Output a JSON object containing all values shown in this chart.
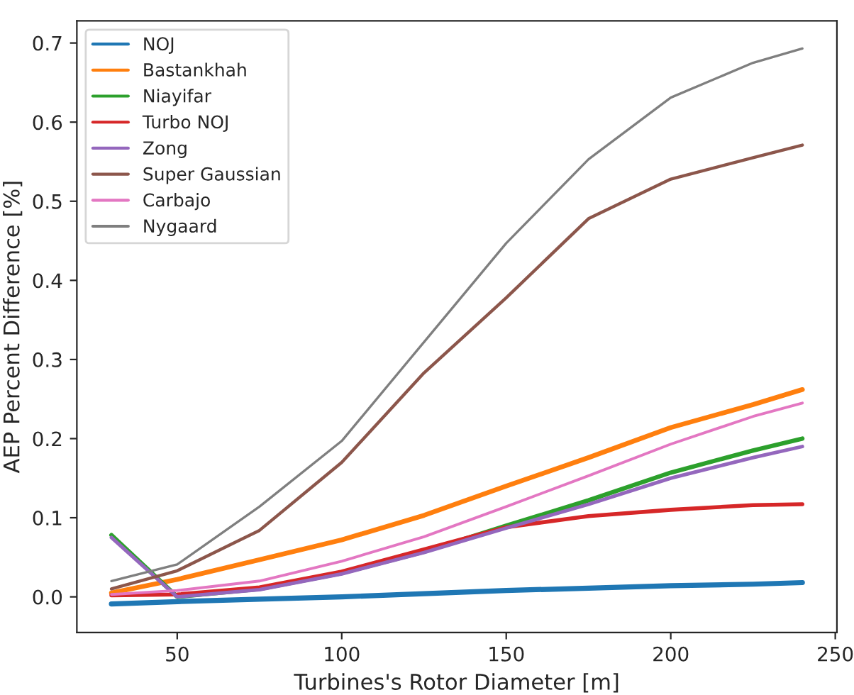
{
  "chart_data": {
    "type": "line",
    "xlabel": "Turbines's Rotor Diameter [m]",
    "ylabel": "AEP Percent Difference [%]",
    "xlim": [
      19.5,
      250.5
    ],
    "xticks": [
      50,
      100,
      150,
      200,
      250
    ],
    "ylim": [
      -0.045,
      0.728
    ],
    "yticks": [
      {
        "value": 0,
        "label": "0.0"
      },
      0.1,
      0.2,
      0.3,
      0.4,
      0.5,
      0.6,
      0.7
    ],
    "grid": false,
    "legend": "top left",
    "marker": "none",
    "line_style": "solid",
    "series": [
      {
        "name": "NOJ",
        "color": "#1f77b4",
        "x": [
          30,
          50,
          75,
          100,
          125,
          150,
          175,
          200,
          225,
          240
        ],
        "values": [
          -0.009,
          -0.006,
          -0.003,
          0.0,
          0.004,
          0.008,
          0.011,
          0.014,
          0.016,
          0.018
        ]
      },
      {
        "name": "Bastankhah",
        "color": "#ff7f0e",
        "x": [
          30,
          50,
          75,
          100,
          125,
          150,
          175,
          200,
          225,
          240
        ],
        "values": [
          0.005,
          0.022,
          0.047,
          0.072,
          0.103,
          0.14,
          0.176,
          0.214,
          0.243,
          0.262
        ]
      },
      {
        "name": "Niayifar",
        "color": "#2ca02c",
        "x": [
          30,
          50,
          75,
          100,
          125,
          150,
          175,
          200,
          225,
          240
        ],
        "values": [
          0.078,
          0.0,
          0.01,
          0.03,
          0.057,
          0.09,
          0.122,
          0.157,
          0.185,
          0.2
        ]
      },
      {
        "name": "Turbo NOJ",
        "color": "#d62728",
        "x": [
          30,
          50,
          75,
          100,
          125,
          150,
          175,
          200,
          225,
          240
        ],
        "values": [
          0.002,
          0.003,
          0.012,
          0.032,
          0.06,
          0.088,
          0.102,
          0.11,
          0.116,
          0.117
        ]
      },
      {
        "name": "Zong",
        "color": "#9467bd",
        "x": [
          30,
          50,
          75,
          100,
          125,
          150,
          175,
          200,
          225,
          240
        ],
        "values": [
          0.075,
          0.0,
          0.009,
          0.029,
          0.056,
          0.087,
          0.117,
          0.15,
          0.176,
          0.19
        ]
      },
      {
        "name": "Super Gaussian",
        "color": "#8c564b",
        "x": [
          30,
          50,
          75,
          100,
          125,
          150,
          175,
          200,
          225,
          240
        ],
        "values": [
          0.01,
          0.033,
          0.084,
          0.17,
          0.283,
          0.378,
          0.478,
          0.528,
          0.555,
          0.571
        ]
      },
      {
        "name": "Carbajo",
        "color": "#e377c2",
        "x": [
          30,
          50,
          75,
          100,
          125,
          150,
          175,
          200,
          225,
          240
        ],
        "values": [
          0.003,
          0.008,
          0.02,
          0.045,
          0.076,
          0.114,
          0.153,
          0.193,
          0.228,
          0.245
        ]
      },
      {
        "name": "Nygaard",
        "color": "#7f7f7f",
        "x": [
          30,
          50,
          75,
          100,
          125,
          150,
          175,
          200,
          225,
          240
        ],
        "values": [
          0.02,
          0.041,
          0.114,
          0.197,
          0.322,
          0.447,
          0.553,
          0.631,
          0.675,
          0.693
        ]
      }
    ]
  }
}
